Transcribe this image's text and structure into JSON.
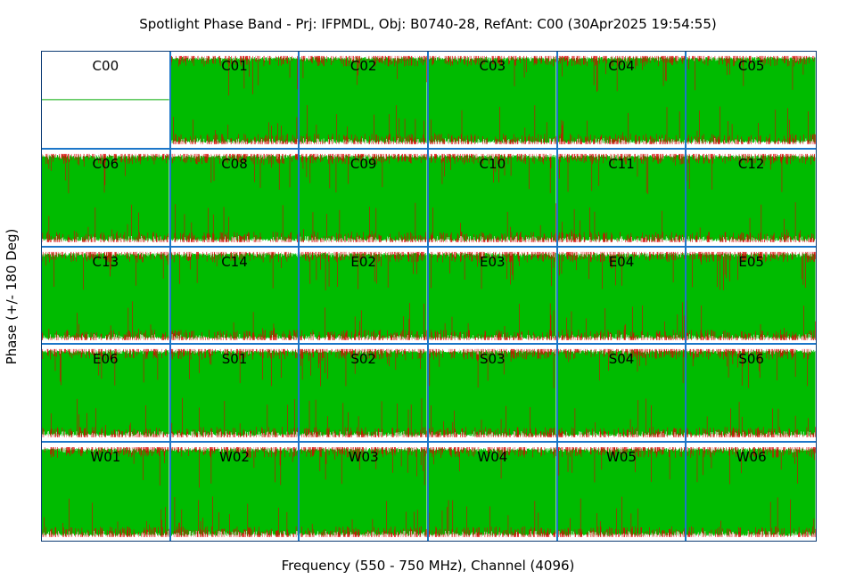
{
  "chart_data": {
    "type": "line",
    "title": "Spotlight Phase Band - Prj: IFPMDL, Obj: B0740-28, RefAnt: C00 (30Apr2025 19:54:55)",
    "xlabel": "Frequency (550 - 750 MHz), Channel (4096)",
    "ylabel": "Phase (+/- 180 Deg)",
    "ylim": [
      -180,
      180
    ],
    "rows": 5,
    "cols": 6,
    "colors": {
      "phase_fill": "#00bb00",
      "outliers": "#dd0000",
      "reference": "#00aa00",
      "panel_border": "#1c76c9",
      "frame": "#0b3a73"
    },
    "panels": [
      {
        "name": "C00",
        "reference": true
      },
      {
        "name": "C01"
      },
      {
        "name": "C02"
      },
      {
        "name": "C03"
      },
      {
        "name": "C04"
      },
      {
        "name": "C05"
      },
      {
        "name": "C06"
      },
      {
        "name": "C08"
      },
      {
        "name": "C09"
      },
      {
        "name": "C10"
      },
      {
        "name": "C11"
      },
      {
        "name": "C12"
      },
      {
        "name": "C13"
      },
      {
        "name": "C14"
      },
      {
        "name": "E02"
      },
      {
        "name": "E03"
      },
      {
        "name": "E04"
      },
      {
        "name": "E05"
      },
      {
        "name": "E06"
      },
      {
        "name": "S01"
      },
      {
        "name": "S02"
      },
      {
        "name": "S03"
      },
      {
        "name": "S04"
      },
      {
        "name": "S06"
      },
      {
        "name": "W01"
      },
      {
        "name": "W02"
      },
      {
        "name": "W03"
      },
      {
        "name": "W04"
      },
      {
        "name": "W05"
      },
      {
        "name": "W06"
      }
    ]
  }
}
